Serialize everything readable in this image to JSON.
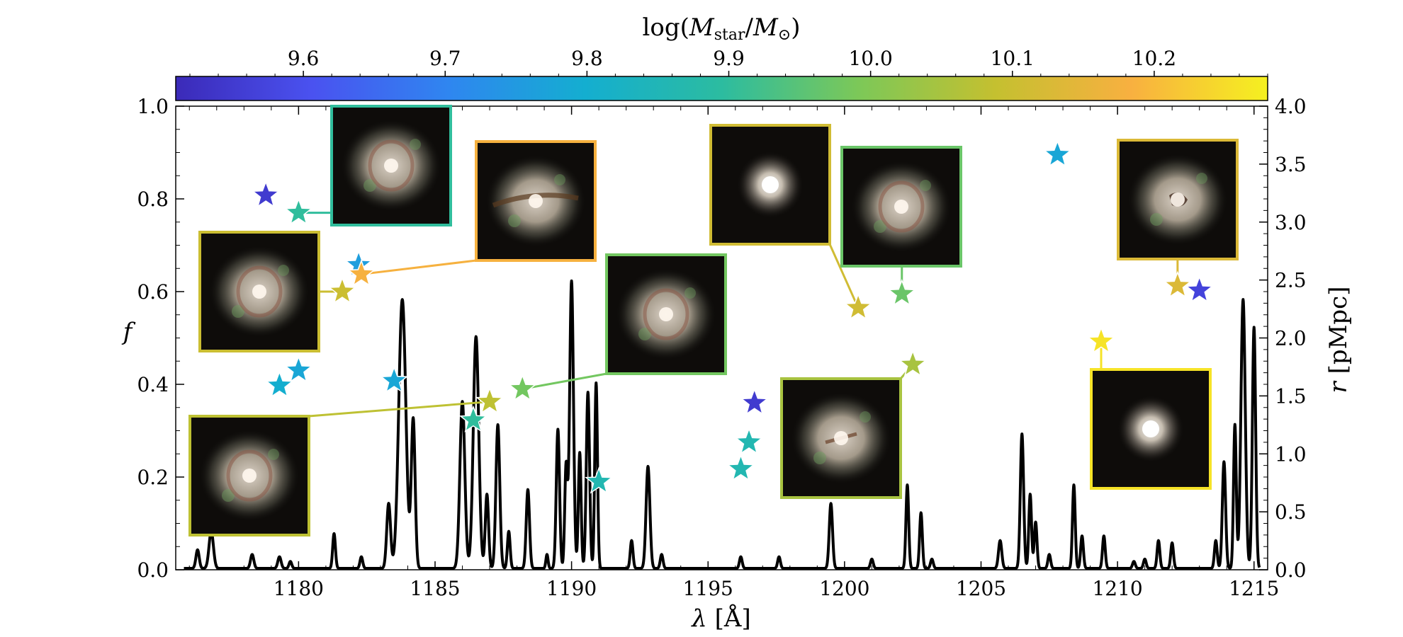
{
  "chart_data": {
    "type": "line",
    "xlabel": "λ [Å]",
    "ylabel_left": "f",
    "ylabel_right": "r [pMpc]",
    "colorbar_label": "log(M_star/M_⊙)",
    "xlim": [
      1175.5,
      1215.5
    ],
    "ylim_left": [
      0.0,
      1.0
    ],
    "ylim_right": [
      0.0,
      4.0
    ],
    "colorbar_range": [
      9.51,
      10.28
    ],
    "grid": false,
    "x_ticks": [
      "1180",
      "1185",
      "1190",
      "1195",
      "1200",
      "1205",
      "1210",
      "1215"
    ],
    "y_ticks_left": [
      "0.0",
      "0.2",
      "0.4",
      "0.6",
      "0.8",
      "1.0"
    ],
    "y_ticks_right": [
      "0.0",
      "0.5",
      "1.0",
      "1.5",
      "2.0",
      "2.5",
      "3.0",
      "3.5",
      "4.0"
    ],
    "colorbar_ticks": [
      "9.6",
      "9.7",
      "9.8",
      "9.9",
      "10.0",
      "10.1",
      "10.2"
    ],
    "colormap_stops": [
      "#3b2ab8",
      "#4a52f0",
      "#2f86f0",
      "#14aed0",
      "#2cbca0",
      "#7cc858",
      "#c4c030",
      "#f8b040",
      "#f5f020"
    ],
    "spectrum": {
      "baseline": 0.003,
      "lines": [
        [
          1176.3,
          0.04,
          0.06
        ],
        [
          1176.8,
          0.08,
          0.08
        ],
        [
          1178.3,
          0.03,
          0.06
        ],
        [
          1179.3,
          0.025,
          0.06
        ],
        [
          1179.7,
          0.015,
          0.05
        ],
        [
          1181.3,
          0.075,
          0.05
        ],
        [
          1182.3,
          0.025,
          0.05
        ],
        [
          1183.3,
          0.14,
          0.07
        ],
        [
          1183.8,
          0.58,
          0.13
        ],
        [
          1184.2,
          0.32,
          0.07
        ],
        [
          1186.0,
          0.36,
          0.09
        ],
        [
          1186.5,
          0.5,
          0.1
        ],
        [
          1186.9,
          0.16,
          0.06
        ],
        [
          1187.3,
          0.31,
          0.07
        ],
        [
          1187.7,
          0.08,
          0.05
        ],
        [
          1188.4,
          0.17,
          0.06
        ],
        [
          1189.1,
          0.03,
          0.04
        ],
        [
          1189.5,
          0.3,
          0.06
        ],
        [
          1189.8,
          0.22,
          0.05
        ],
        [
          1190.0,
          0.62,
          0.07
        ],
        [
          1190.3,
          0.25,
          0.05
        ],
        [
          1190.6,
          0.38,
          0.06
        ],
        [
          1190.9,
          0.4,
          0.05
        ],
        [
          1192.2,
          0.06,
          0.05
        ],
        [
          1192.8,
          0.22,
          0.07
        ],
        [
          1193.3,
          0.03,
          0.05
        ],
        [
          1196.2,
          0.025,
          0.05
        ],
        [
          1197.6,
          0.025,
          0.05
        ],
        [
          1199.5,
          0.14,
          0.06
        ],
        [
          1201.0,
          0.02,
          0.05
        ],
        [
          1202.3,
          0.18,
          0.05
        ],
        [
          1202.8,
          0.12,
          0.05
        ],
        [
          1203.2,
          0.02,
          0.05
        ],
        [
          1205.7,
          0.06,
          0.06
        ],
        [
          1206.5,
          0.29,
          0.06
        ],
        [
          1206.8,
          0.16,
          0.05
        ],
        [
          1207.0,
          0.1,
          0.05
        ],
        [
          1207.5,
          0.03,
          0.05
        ],
        [
          1208.4,
          0.18,
          0.05
        ],
        [
          1208.7,
          0.07,
          0.05
        ],
        [
          1209.5,
          0.07,
          0.05
        ],
        [
          1210.6,
          0.015,
          0.05
        ],
        [
          1211.0,
          0.02,
          0.05
        ],
        [
          1211.5,
          0.06,
          0.05
        ],
        [
          1212.0,
          0.055,
          0.05
        ],
        [
          1213.6,
          0.06,
          0.05
        ],
        [
          1213.9,
          0.23,
          0.06
        ],
        [
          1214.3,
          0.31,
          0.05
        ],
        [
          1214.6,
          0.58,
          0.08
        ],
        [
          1215.0,
          0.52,
          0.06
        ]
      ]
    },
    "galaxies": [
      {
        "lambda": 1178.8,
        "r": 3.23,
        "logM": 9.55
      },
      {
        "lambda": 1180.0,
        "r": 3.08,
        "logM": 9.9
      },
      {
        "lambda": 1180.0,
        "r": 1.72,
        "logM": 9.78
      },
      {
        "lambda": 1179.3,
        "r": 1.59,
        "logM": 9.8
      },
      {
        "lambda": 1181.6,
        "r": 2.4,
        "logM": 10.1
      },
      {
        "lambda": 1182.2,
        "r": 2.63,
        "logM": 9.76
      },
      {
        "lambda": 1182.3,
        "r": 2.55,
        "logM": 10.18
      },
      {
        "lambda": 1183.5,
        "r": 1.63,
        "logM": 9.78
      },
      {
        "lambda": 1186.4,
        "r": 1.29,
        "logM": 9.9
      },
      {
        "lambda": 1187.0,
        "r": 1.45,
        "logM": 10.08
      },
      {
        "lambda": 1188.2,
        "r": 1.56,
        "logM": 9.98
      },
      {
        "lambda": 1191.0,
        "r": 0.76,
        "logM": 9.86
      },
      {
        "lambda": 1196.2,
        "r": 0.87,
        "logM": 9.86
      },
      {
        "lambda": 1196.5,
        "r": 1.1,
        "logM": 9.86
      },
      {
        "lambda": 1196.7,
        "r": 1.44,
        "logM": 9.55
      },
      {
        "lambda": 1200.5,
        "r": 2.26,
        "logM": 10.11
      },
      {
        "lambda": 1202.1,
        "r": 2.38,
        "logM": 9.97
      },
      {
        "lambda": 1202.5,
        "r": 1.77,
        "logM": 10.05
      },
      {
        "lambda": 1207.8,
        "r": 3.58,
        "logM": 9.78
      },
      {
        "lambda": 1209.4,
        "r": 1.97,
        "logM": 10.26
      },
      {
        "lambda": 1212.2,
        "r": 2.45,
        "logM": 10.13
      },
      {
        "lambda": 1213.0,
        "r": 2.41,
        "logM": 9.57
      }
    ],
    "thumbnails": [
      {
        "target": 1,
        "logM": 9.9,
        "style": "ring"
      },
      {
        "target": 4,
        "logM": 10.1,
        "style": "ring"
      },
      {
        "target": 6,
        "logM": 10.18,
        "style": "dust-lane"
      },
      {
        "target": 9,
        "logM": 10.08,
        "style": "ring"
      },
      {
        "target": 10,
        "logM": 9.98,
        "style": "ring"
      },
      {
        "target": 15,
        "logM": 10.11,
        "style": "compact"
      },
      {
        "target": 16,
        "logM": 9.97,
        "style": "ring"
      },
      {
        "target": 17,
        "logM": 10.05,
        "style": "bar"
      },
      {
        "target": 19,
        "logM": 10.26,
        "style": "compact"
      },
      {
        "target": 20,
        "logM": 10.13,
        "style": "dusty"
      }
    ]
  }
}
